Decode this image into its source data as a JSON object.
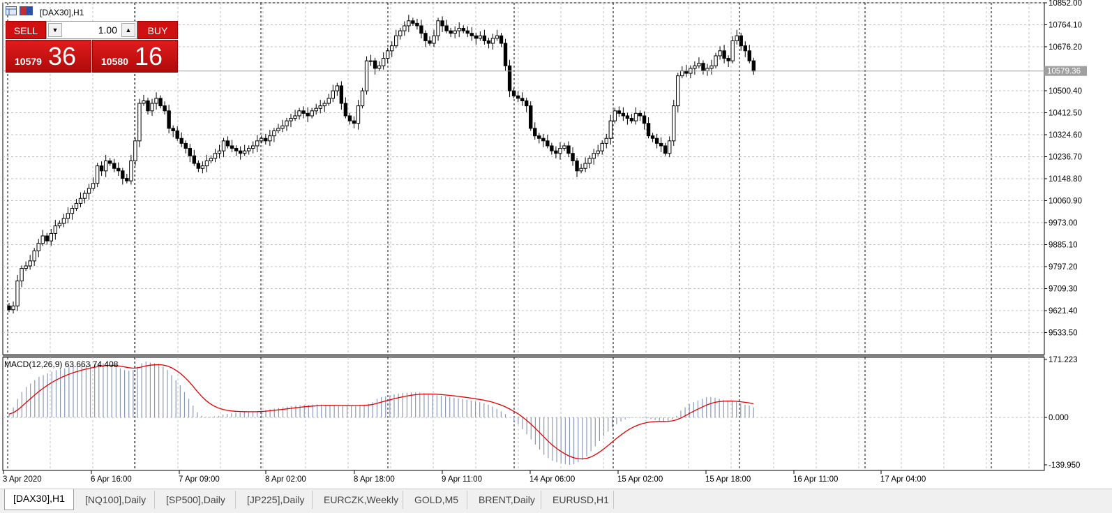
{
  "window": {
    "title": "[DAX30],H1"
  },
  "trade_panel": {
    "sell_label": "SELL",
    "buy_label": "BUY",
    "lot_value": "1.00",
    "sell_price_small": "10579",
    "sell_price_big": "36",
    "buy_price_small": "10580",
    "buy_price_big": "16",
    "accent": "#d01010"
  },
  "price_axis": {
    "labels": [
      "10852.00",
      "10764.10",
      "10676.20",
      "10500.40",
      "10412.50",
      "10324.60",
      "10236.70",
      "10148.80",
      "10060.90",
      "9973.00",
      "9885.10",
      "9797.20",
      "9709.30",
      "9621.40",
      "9533.50"
    ],
    "current_price": "10579.36"
  },
  "macd": {
    "label": "MACD(12,26,9) 63.663 74.408",
    "axis_labels": [
      "171.223",
      "0.000",
      "-139.950"
    ]
  },
  "time_axis": {
    "labels": [
      "3 Apr 2020",
      "6 Apr 16:00",
      "7 Apr 09:00",
      "8 Apr 02:00",
      "8 Apr 18:00",
      "9 Apr 11:00",
      "14 Apr 06:00",
      "15 Apr 02:00",
      "15 Apr 18:00",
      "16 Apr 11:00",
      "17 Apr 04:00"
    ]
  },
  "tabs": [
    "[DAX30],H1",
    "[NQ100],Daily",
    "[SP500],Daily",
    "[JP225],Daily",
    "EURCZK,Weekly",
    "GOLD,M5",
    "BRENT,Daily",
    "EURUSD,H1"
  ],
  "chart_data": {
    "type": "candlestick",
    "symbol": "[DAX30],H1",
    "ylim": [
      9533.5,
      10852.0
    ],
    "close": [
      9625,
      9640,
      9740,
      9790,
      9800,
      9820,
      9860,
      9890,
      9920,
      9900,
      9930,
      9960,
      9970,
      9990,
      10010,
      10030,
      10050,
      10070,
      10090,
      10110,
      10130,
      10200,
      10180,
      10220,
      10210,
      10190,
      10180,
      10150,
      10140,
      10220,
      10300,
      10450,
      10460,
      10420,
      10450,
      10470,
      10440,
      10420,
      10350,
      10340,
      10310,
      10290,
      10270,
      10240,
      10210,
      10190,
      10200,
      10220,
      10230,
      10250,
      10260,
      10300,
      10280,
      10270,
      10260,
      10250,
      10260,
      10270,
      10280,
      10300,
      10310,
      10300,
      10320,
      10340,
      10350,
      10360,
      10380,
      10390,
      10400,
      10420,
      10410,
      10400,
      10420,
      10430,
      10440,
      10450,
      10470,
      10500,
      10520,
      10450,
      10400,
      10380,
      10370,
      10440,
      10500,
      10620,
      10620,
      10590,
      10600,
      10630,
      10660,
      10680,
      10720,
      10740,
      10760,
      10780,
      10770,
      10760,
      10730,
      10700,
      10690,
      10720,
      10780,
      10760,
      10740,
      10730,
      10740,
      10750,
      10740,
      10730,
      10720,
      10710,
      10720,
      10700,
      10690,
      10710,
      10720,
      10690,
      10600,
      10500,
      10480,
      10470,
      10460,
      10440,
      10350,
      10320,
      10310,
      10300,
      10280,
      10260,
      10250,
      10270,
      10280,
      10250,
      10220,
      10180,
      10190,
      10210,
      10230,
      10250,
      10260,
      10290,
      10310,
      10380,
      10420,
      10410,
      10400,
      10390,
      10380,
      10410,
      10400,
      10370,
      10320,
      10310,
      10290,
      10280,
      10250,
      10300,
      10440,
      10560,
      10580,
      10570,
      10590,
      10600,
      10610,
      10580,
      10590,
      10600,
      10640,
      10660,
      10630,
      10620,
      10700,
      10720,
      10680,
      10660,
      10620,
      10579
    ],
    "macd_histogram_approx": [
      10,
      30,
      55,
      75,
      90,
      100,
      110,
      120,
      125,
      130,
      135,
      140,
      142,
      145,
      148,
      150,
      152,
      154,
      155,
      157,
      159,
      160,
      160,
      158,
      155,
      150,
      145,
      140,
      138,
      140,
      150,
      160,
      165,
      162,
      160,
      158,
      150,
      140,
      125,
      110,
      95,
      75,
      55,
      35,
      15,
      5,
      2,
      2,
      3,
      5,
      8,
      10,
      12,
      14,
      15,
      16,
      16,
      17,
      18,
      20,
      22,
      24,
      26,
      28,
      30,
      32,
      33,
      35,
      36,
      37,
      37,
      38,
      38,
      38,
      37,
      36,
      35,
      34,
      33,
      34,
      35,
      36,
      37,
      38,
      40,
      45,
      55,
      60,
      62,
      65,
      68,
      70,
      72,
      73,
      74,
      74,
      73,
      72,
      70,
      68,
      66,
      64,
      62,
      60,
      58,
      56,
      54,
      52,
      50,
      48,
      45,
      42,
      38,
      32,
      25,
      18,
      10,
      0,
      -10,
      -20,
      -35,
      -50,
      -65,
      -80,
      -95,
      -110,
      -120,
      -128,
      -132,
      -135,
      -138,
      -140,
      -138,
      -132,
      -125,
      -115,
      -100,
      -85,
      -70,
      -55,
      -42,
      -30,
      -20,
      -12,
      -6,
      -2,
      -1,
      -1,
      -2,
      -3,
      -5,
      -8,
      -10,
      -12,
      -10,
      -5,
      5,
      20,
      30,
      40,
      45,
      50,
      55,
      60,
      60,
      58,
      55,
      52,
      50,
      48,
      45,
      42,
      38,
      35,
      30
    ]
  }
}
